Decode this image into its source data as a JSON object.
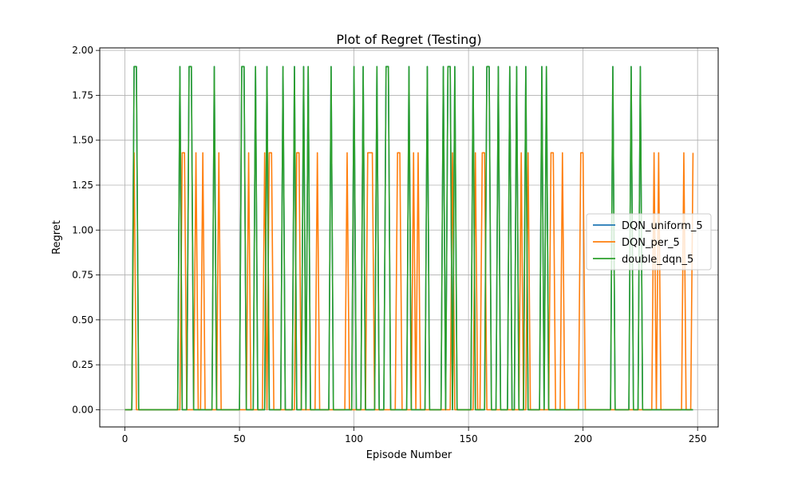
{
  "chart_data": {
    "type": "line",
    "title": "Plot of Regret (Testing)",
    "xlabel": "Episode Number",
    "ylabel": "Regret",
    "xlim": [
      -11,
      259
    ],
    "ylim": [
      -0.096,
      2.014
    ],
    "xticks": [
      0,
      50,
      100,
      150,
      200,
      250
    ],
    "yticks": [
      0.0,
      0.25,
      0.5,
      0.75,
      1.0,
      1.25,
      1.5,
      1.75,
      2.0
    ],
    "xtick_labels": [
      "0",
      "50",
      "100",
      "150",
      "200",
      "250"
    ],
    "ytick_labels": [
      "0.00",
      "0.25",
      "0.50",
      "0.75",
      "1.00",
      "1.25",
      "1.50",
      "1.75",
      "2.00"
    ],
    "grid": true,
    "legend_position": "center-right",
    "episodes": 249,
    "series": [
      {
        "name": "DQN_uniform_5",
        "color": "#1f77b4",
        "spikes": [
          [
            4,
            1.91
          ],
          [
            5,
            1.91
          ],
          [
            24,
            1.91
          ],
          [
            28,
            1.91
          ],
          [
            29,
            1.91
          ],
          [
            39,
            1.91
          ],
          [
            51,
            1.91
          ],
          [
            52,
            1.91
          ],
          [
            57,
            1.91
          ],
          [
            62,
            1.91
          ],
          [
            69,
            1.91
          ],
          [
            74,
            1.91
          ],
          [
            78,
            1.91
          ],
          [
            80,
            1.91
          ],
          [
            90,
            1.91
          ],
          [
            100,
            1.91
          ],
          [
            104,
            1.91
          ],
          [
            110,
            1.91
          ],
          [
            114,
            1.91
          ],
          [
            115,
            1.91
          ],
          [
            124,
            1.91
          ],
          [
            132,
            1.91
          ],
          [
            139,
            1.91
          ],
          [
            141,
            1.91
          ],
          [
            142,
            1.91
          ],
          [
            144,
            1.91
          ],
          [
            152,
            1.91
          ],
          [
            158,
            1.91
          ],
          [
            159,
            1.91
          ],
          [
            163,
            1.91
          ],
          [
            168,
            1.91
          ],
          [
            171,
            1.91
          ],
          [
            175,
            1.91
          ],
          [
            182,
            1.91
          ],
          [
            184,
            1.91
          ],
          [
            213,
            1.91
          ],
          [
            221,
            1.91
          ],
          [
            225,
            1.91
          ]
        ]
      },
      {
        "name": "DQN_per_5",
        "color": "#ff7f0e",
        "spikes": [
          [
            4,
            1.43
          ],
          [
            25,
            1.43
          ],
          [
            26,
            1.43
          ],
          [
            31,
            1.43
          ],
          [
            34,
            1.43
          ],
          [
            41,
            1.43
          ],
          [
            54,
            1.43
          ],
          [
            61,
            1.43
          ],
          [
            63,
            1.43
          ],
          [
            64,
            1.43
          ],
          [
            75,
            1.43
          ],
          [
            76,
            1.43
          ],
          [
            84,
            1.43
          ],
          [
            97,
            1.43
          ],
          [
            106,
            1.43
          ],
          [
            107,
            1.43
          ],
          [
            108,
            1.43
          ],
          [
            119,
            1.43
          ],
          [
            120,
            1.43
          ],
          [
            126,
            1.43
          ],
          [
            128,
            1.43
          ],
          [
            143,
            1.43
          ],
          [
            153,
            1.43
          ],
          [
            156,
            1.43
          ],
          [
            157,
            1.43
          ],
          [
            173,
            1.43
          ],
          [
            176,
            1.43
          ],
          [
            186,
            1.43
          ],
          [
            187,
            1.43
          ],
          [
            191,
            1.43
          ],
          [
            199,
            1.43
          ],
          [
            200,
            1.43
          ],
          [
            231,
            1.43
          ],
          [
            233,
            1.43
          ],
          [
            244,
            1.43
          ],
          [
            248,
            1.43
          ]
        ]
      },
      {
        "name": "double_dqn_5",
        "color": "#2ca02c",
        "spikes": [
          [
            4,
            1.91
          ],
          [
            5,
            1.91
          ],
          [
            24,
            1.91
          ],
          [
            28,
            1.91
          ],
          [
            29,
            1.91
          ],
          [
            39,
            1.91
          ],
          [
            51,
            1.91
          ],
          [
            52,
            1.91
          ],
          [
            57,
            1.91
          ],
          [
            62,
            1.91
          ],
          [
            69,
            1.91
          ],
          [
            74,
            1.91
          ],
          [
            78,
            1.91
          ],
          [
            80,
            1.91
          ],
          [
            90,
            1.91
          ],
          [
            100,
            1.91
          ],
          [
            104,
            1.91
          ],
          [
            110,
            1.91
          ],
          [
            114,
            1.91
          ],
          [
            115,
            1.91
          ],
          [
            124,
            1.91
          ],
          [
            132,
            1.91
          ],
          [
            139,
            1.91
          ],
          [
            141,
            1.91
          ],
          [
            142,
            1.91
          ],
          [
            144,
            1.91
          ],
          [
            152,
            1.91
          ],
          [
            158,
            1.91
          ],
          [
            159,
            1.91
          ],
          [
            163,
            1.91
          ],
          [
            168,
            1.91
          ],
          [
            171,
            1.91
          ],
          [
            175,
            1.91
          ],
          [
            182,
            1.91
          ],
          [
            184,
            1.91
          ],
          [
            213,
            1.91
          ],
          [
            221,
            1.91
          ],
          [
            225,
            1.91
          ]
        ]
      }
    ]
  }
}
